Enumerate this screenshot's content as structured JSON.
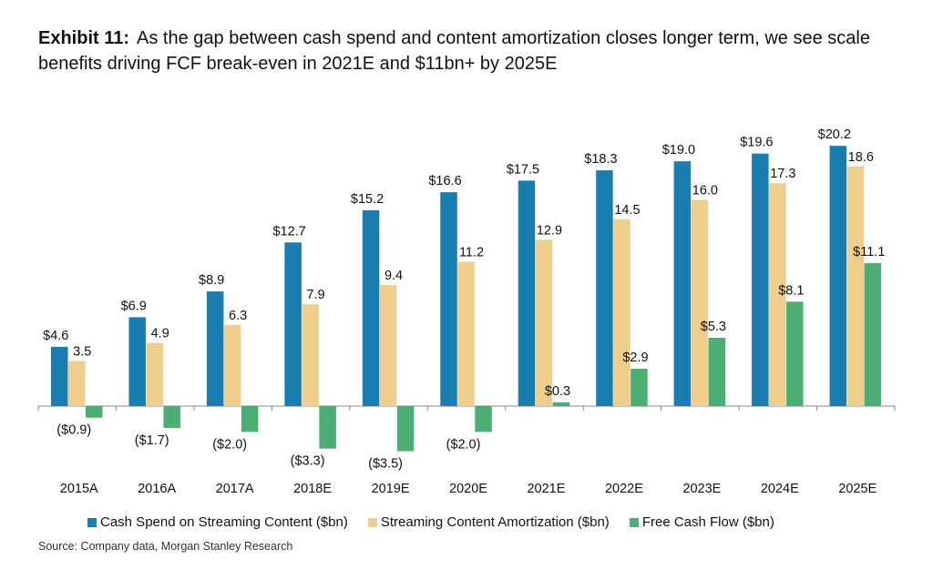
{
  "exhibit_label": "Exhibit 11:",
  "exhibit_text": "As the gap between cash spend and content amortization closes longer term, we see scale benefits driving FCF break-even in 2021E and $11bn+ by 2025E",
  "source": "Source: Company data, Morgan Stanley Research",
  "colors": {
    "cash": "#1A7DB0",
    "amort": "#EFCD8A",
    "fcf": "#4BAE73",
    "axis": "#8a8a8a"
  },
  "chart_data": {
    "type": "bar",
    "title": "As the gap between cash spend and content amortization closes longer term, we see scale benefits driving FCF break-even in 2021E and $11bn+ by 2025E",
    "categories": [
      "2015A",
      "2016A",
      "2017A",
      "2018E",
      "2019E",
      "2020E",
      "2021E",
      "2022E",
      "2023E",
      "2024E",
      "2025E"
    ],
    "series": [
      {
        "name": "Cash Spend on Streaming Content ($bn)",
        "values": [
          4.6,
          6.9,
          8.9,
          12.7,
          15.2,
          16.6,
          17.5,
          18.3,
          19.0,
          19.6,
          20.2
        ],
        "labels": [
          "$4.6",
          "$6.9",
          "$8.9",
          "$12.7",
          "$15.2",
          "$16.6",
          "$17.5",
          "$18.3",
          "$19.0",
          "$19.6",
          "$20.2"
        ]
      },
      {
        "name": "Streaming Content Amortization ($bn)",
        "values": [
          3.5,
          4.9,
          6.3,
          7.9,
          9.4,
          11.2,
          12.9,
          14.5,
          16.0,
          17.3,
          18.6
        ],
        "labels": [
          "3.5",
          "4.9",
          "6.3",
          "7.9",
          "9.4",
          "11.2",
          "12.9",
          "14.5",
          "16.0",
          "17.3",
          "18.6"
        ]
      },
      {
        "name": "Free Cash Flow ($bn)",
        "values": [
          -0.9,
          -1.7,
          -2.0,
          -3.3,
          -3.5,
          -2.0,
          0.3,
          2.9,
          5.3,
          8.1,
          11.1
        ],
        "labels": [
          "($0.9)",
          "($1.7)",
          "($2.0)",
          "($3.3)",
          "($3.5)",
          "($2.0)",
          "$0.3",
          "$2.9",
          "$5.3",
          "$8.1",
          "$11.1"
        ]
      }
    ],
    "xlabel": "",
    "ylabel": "",
    "ylim": [
      -4,
      21
    ],
    "grid": false,
    "legend": "bottom"
  }
}
